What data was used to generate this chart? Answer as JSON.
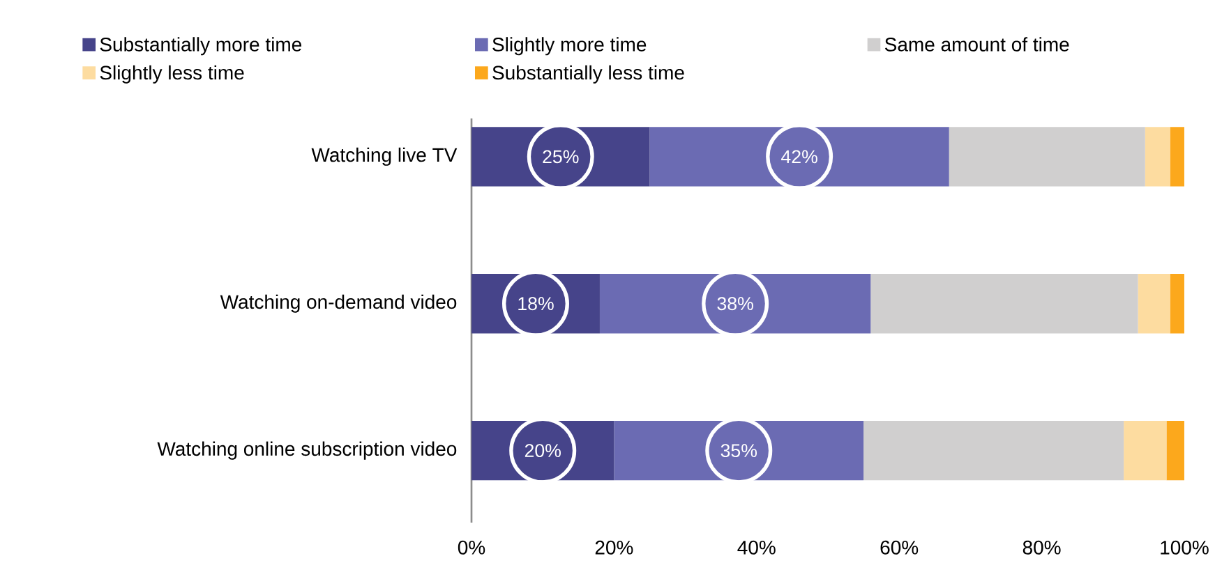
{
  "chart_data": {
    "type": "bar",
    "orientation": "horizontal",
    "stacked": true,
    "legend": "top",
    "categories": [
      "Watching live TV",
      "Watching on-demand video",
      "Watching online subscription video"
    ],
    "series": [
      {
        "name": "Substantially more time",
        "color": "#46448a",
        "values": [
          25,
          18,
          20
        ],
        "value_labels": [
          "25%",
          "18%",
          "20%"
        ]
      },
      {
        "name": "Slightly more time",
        "color": "#6b6bb3",
        "values": [
          42,
          38,
          35
        ],
        "value_labels": [
          "42%",
          "38%",
          "35%"
        ]
      },
      {
        "name": "Same amount of time",
        "color": "#d0cfcf",
        "values": [
          27.5,
          37.5,
          36.5
        ]
      },
      {
        "name": "Slightly less time",
        "color": "#fddca0",
        "values": [
          3.5,
          4.5,
          6
        ]
      },
      {
        "name": "Substantially less time",
        "color": "#fca81c",
        "values": [
          2,
          2,
          2.5
        ]
      }
    ],
    "xlim": [
      0,
      100
    ],
    "xticks": [
      {
        "value": 0,
        "label": "0%"
      },
      {
        "value": 20,
        "label": "20%"
      },
      {
        "value": 40,
        "label": "40%"
      },
      {
        "value": 60,
        "label": "60%"
      },
      {
        "value": 80,
        "label": "80%"
      },
      {
        "value": 100,
        "label": "100%"
      }
    ]
  }
}
